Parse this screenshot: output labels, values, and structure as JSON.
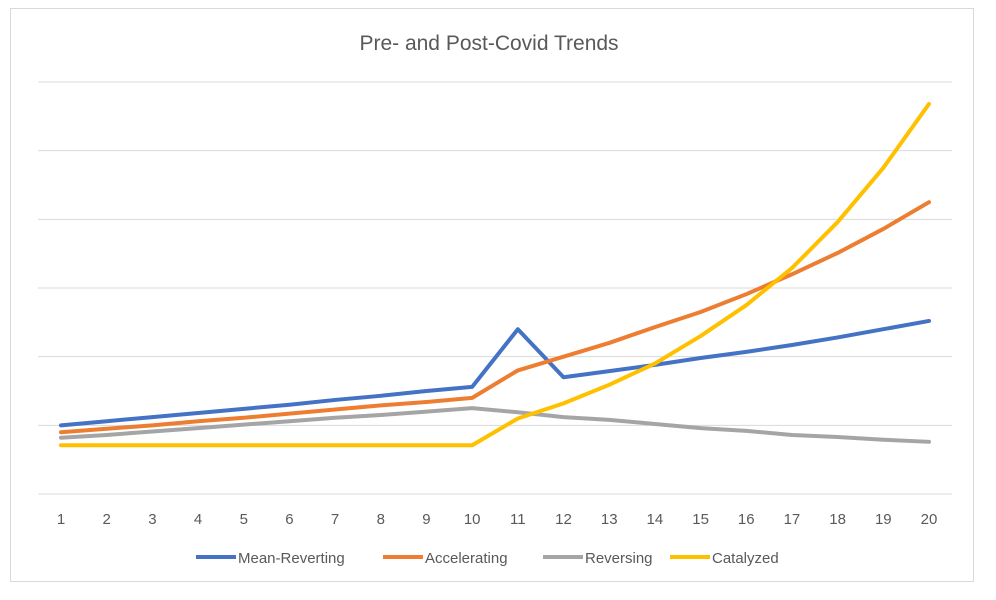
{
  "chart_data": {
    "type": "line",
    "title": "Pre- and Post-Covid Trends",
    "xlabel": "",
    "ylabel": "",
    "x": [
      1,
      2,
      3,
      4,
      5,
      6,
      7,
      8,
      9,
      10,
      11,
      12,
      13,
      14,
      15,
      16,
      17,
      18,
      19,
      20
    ],
    "ylim": [
      0,
      6
    ],
    "grid": true,
    "y_tick_labels_shown": false,
    "legend_position": "bottom",
    "series": [
      {
        "name": "Mean-Reverting",
        "color": "#4472C4",
        "values": [
          1.0,
          1.06,
          1.12,
          1.18,
          1.24,
          1.3,
          1.37,
          1.43,
          1.5,
          1.56,
          2.4,
          1.7,
          1.79,
          1.88,
          1.98,
          2.07,
          2.17,
          2.28,
          2.4,
          2.52
        ]
      },
      {
        "name": "Accelerating",
        "color": "#ED7D31",
        "values": [
          0.9,
          0.95,
          1.0,
          1.06,
          1.11,
          1.17,
          1.23,
          1.29,
          1.34,
          1.4,
          1.8,
          2.0,
          2.2,
          2.43,
          2.65,
          2.91,
          3.2,
          3.51,
          3.86,
          4.25
        ]
      },
      {
        "name": "Reversing",
        "color": "#A5A5A5",
        "values": [
          0.82,
          0.86,
          0.91,
          0.96,
          1.01,
          1.06,
          1.11,
          1.15,
          1.2,
          1.25,
          1.19,
          1.12,
          1.08,
          1.02,
          0.96,
          0.92,
          0.86,
          0.83,
          0.79,
          0.76
        ]
      },
      {
        "name": "Catalyzed",
        "color": "#FFC000",
        "values": [
          0.71,
          0.71,
          0.71,
          0.71,
          0.71,
          0.71,
          0.71,
          0.71,
          0.71,
          0.71,
          1.1,
          1.32,
          1.59,
          1.9,
          2.3,
          2.75,
          3.29,
          3.96,
          4.75,
          5.68
        ]
      }
    ]
  }
}
